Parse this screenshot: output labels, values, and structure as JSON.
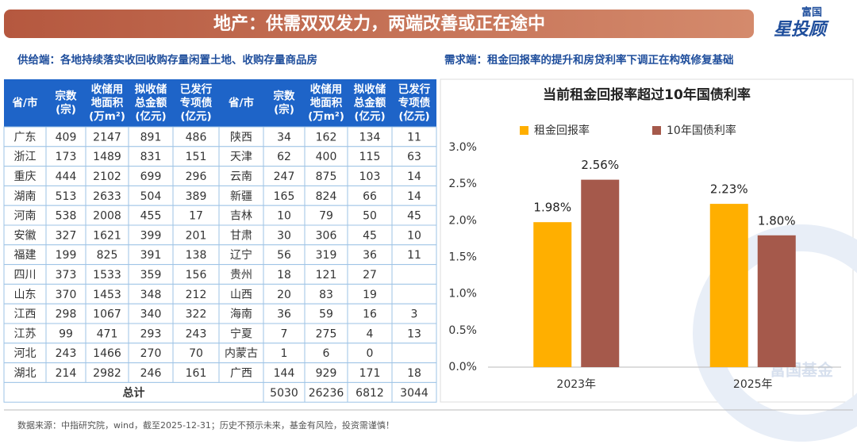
{
  "header": {
    "title": "地产：供需双双发力，两端改善或正在途中",
    "logo_top": "富国",
    "logo_main": "星投顾",
    "watermark": "富国基金"
  },
  "left_subtitle": "供给端：各地持续落实收回收购存量闲置土地、收购存量商品房",
  "right_subtitle": "需求端：租金回报率的提升和房贷利率下调正在构筑修复基础",
  "table": {
    "header": [
      [
        "省/市"
      ],
      [
        "宗数",
        "(宗)"
      ],
      [
        "收储用",
        "地面积",
        "(万m²)"
      ],
      [
        "拟收储",
        "总金额",
        "(亿元)"
      ],
      [
        "已发行",
        "专项债",
        "(亿元)"
      ],
      [
        "省/市"
      ],
      [
        "宗数",
        "(宗)"
      ],
      [
        "收储用",
        "地面积",
        "(万m²)"
      ],
      [
        "拟收储",
        "总金额",
        "(亿元)"
      ],
      [
        "已发行",
        "专项债",
        "(亿元)"
      ]
    ],
    "rows": [
      [
        "广东",
        409,
        2147,
        891,
        486,
        "陕西",
        34,
        162,
        134,
        11
      ],
      [
        "浙江",
        173,
        1489,
        831,
        151,
        "天津",
        62,
        400,
        115,
        63
      ],
      [
        "重庆",
        444,
        2102,
        699,
        296,
        "云南",
        247,
        875,
        103,
        14
      ],
      [
        "湖南",
        513,
        2633,
        504,
        389,
        "新疆",
        165,
        824,
        66,
        14
      ],
      [
        "河南",
        538,
        2008,
        455,
        17,
        "吉林",
        10,
        79,
        50,
        45
      ],
      [
        "安徽",
        327,
        1621,
        399,
        201,
        "甘肃",
        30,
        306,
        45,
        10
      ],
      [
        "福建",
        199,
        825,
        391,
        138,
        "辽宁",
        56,
        319,
        36,
        11
      ],
      [
        "四川",
        373,
        1533,
        359,
        156,
        "贵州",
        18,
        121,
        27,
        null
      ],
      [
        "山东",
        370,
        1453,
        348,
        212,
        "山西",
        20,
        83,
        19,
        null
      ],
      [
        "江西",
        298,
        1067,
        340,
        322,
        "海南",
        36,
        59,
        16,
        3
      ],
      [
        "江苏",
        99,
        471,
        293,
        243,
        "宁夏",
        7,
        275,
        4,
        13
      ],
      [
        "河北",
        243,
        1466,
        270,
        70,
        "内蒙古",
        1,
        6,
        0,
        null
      ],
      [
        "湖北",
        214,
        2982,
        246,
        161,
        "广西",
        144,
        929,
        171,
        18
      ]
    ],
    "total": {
      "label": "总计",
      "values": [
        5030,
        26236,
        6812,
        3044
      ]
    }
  },
  "chart_data": {
    "type": "bar",
    "title": "当前租金回报率超过10年国债利率",
    "categories": [
      "2023年",
      "2025年"
    ],
    "series": [
      {
        "name": "租金回报率",
        "color": "#FFAF00",
        "values": [
          1.98,
          2.23
        ],
        "value_labels": [
          "1.98%",
          "2.23%"
        ]
      },
      {
        "name": "10年国债利率",
        "color": "#A5594B",
        "values": [
          2.56,
          1.8
        ],
        "value_labels": [
          "2.56%",
          "1.80%"
        ]
      }
    ],
    "ylim": [
      0,
      3
    ],
    "yticks": [
      {
        "value": 0,
        "label": "0.0%"
      },
      {
        "value": 0.5,
        "label": "0.5%"
      },
      {
        "value": 1,
        "label": "1.0%"
      },
      {
        "value": 1.5,
        "label": "1.5%"
      },
      {
        "value": 2,
        "label": "2.0%"
      },
      {
        "value": 2.5,
        "label": "2.5%"
      },
      {
        "value": 3,
        "label": "3.0%"
      }
    ],
    "legend": "top"
  },
  "footer": "数据来源：中指研究院，wind，截至2025-12-31；历史不预示未来，基金有风险，投资需谨慎！"
}
